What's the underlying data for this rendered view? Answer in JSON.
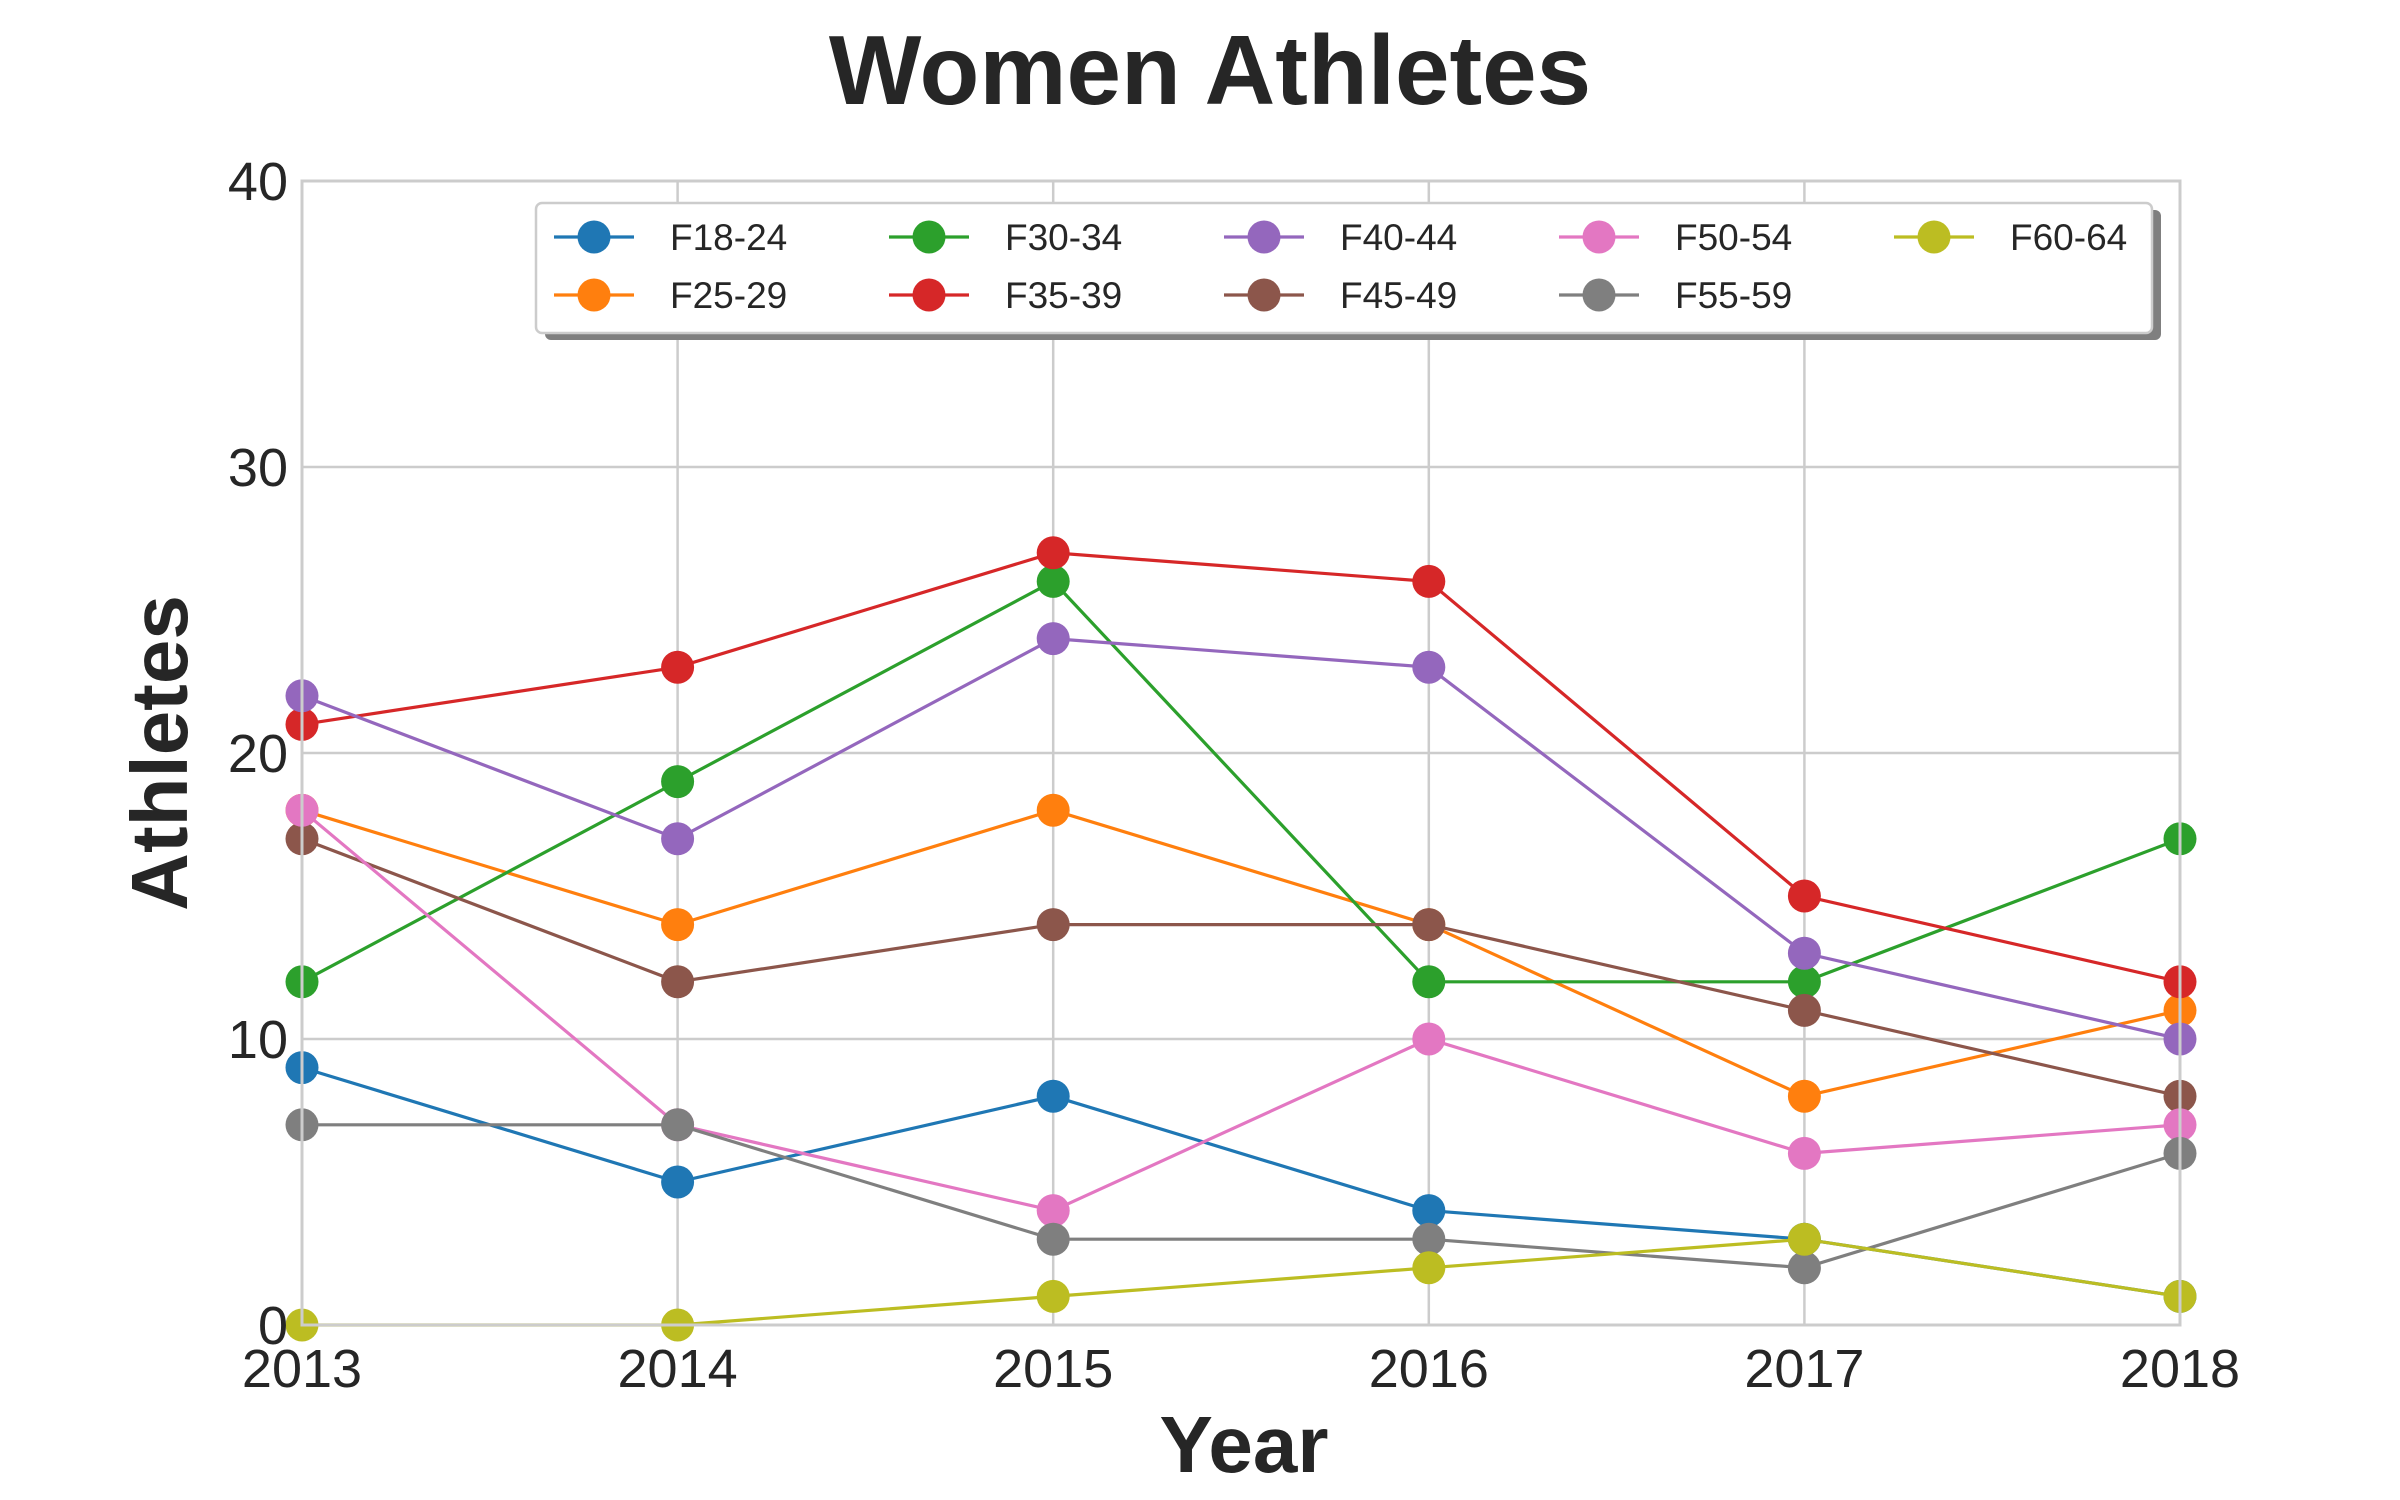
{
  "chart_data": {
    "type": "line",
    "title": "Women Athletes",
    "xlabel": "Year",
    "ylabel": "Athletes",
    "x": [
      2013,
      2014,
      2015,
      2016,
      2017,
      2018
    ],
    "x_tick_labels": [
      "2013",
      "2014",
      "2015",
      "2016",
      "2017",
      "2018"
    ],
    "xlim": [
      2013,
      2018
    ],
    "ylim": [
      0,
      40
    ],
    "y_ticks": [
      0,
      10,
      20,
      30,
      40
    ],
    "y_tick_labels": [
      "0",
      "10",
      "20",
      "30",
      "40"
    ],
    "grid": true,
    "legend": {
      "location": "upper-right",
      "columns": 5,
      "shadow": true
    },
    "series": [
      {
        "name": "F18-24",
        "color": "#1f77b4",
        "values": [
          9,
          5,
          8,
          4,
          3,
          1
        ]
      },
      {
        "name": "F25-29",
        "color": "#ff7f0e",
        "values": [
          18,
          14,
          18,
          14,
          8,
          11
        ]
      },
      {
        "name": "F30-34",
        "color": "#2ca02c",
        "values": [
          12,
          19,
          26,
          12,
          12,
          17
        ]
      },
      {
        "name": "F35-39",
        "color": "#d62728",
        "values": [
          21,
          23,
          27,
          26,
          15,
          12
        ]
      },
      {
        "name": "F40-44",
        "color": "#9467bd",
        "values": [
          22,
          17,
          24,
          23,
          13,
          10
        ]
      },
      {
        "name": "F45-49",
        "color": "#8c564b",
        "values": [
          17,
          12,
          14,
          14,
          11,
          8
        ]
      },
      {
        "name": "F50-54",
        "color": "#e377c2",
        "values": [
          18,
          7,
          4,
          10,
          6,
          7
        ]
      },
      {
        "name": "F55-59",
        "color": "#7f7f7f",
        "values": [
          7,
          7,
          3,
          3,
          2,
          6
        ]
      },
      {
        "name": "F60-64",
        "color": "#bcbd22",
        "values": [
          0,
          0,
          1,
          2,
          3,
          1
        ]
      }
    ]
  }
}
